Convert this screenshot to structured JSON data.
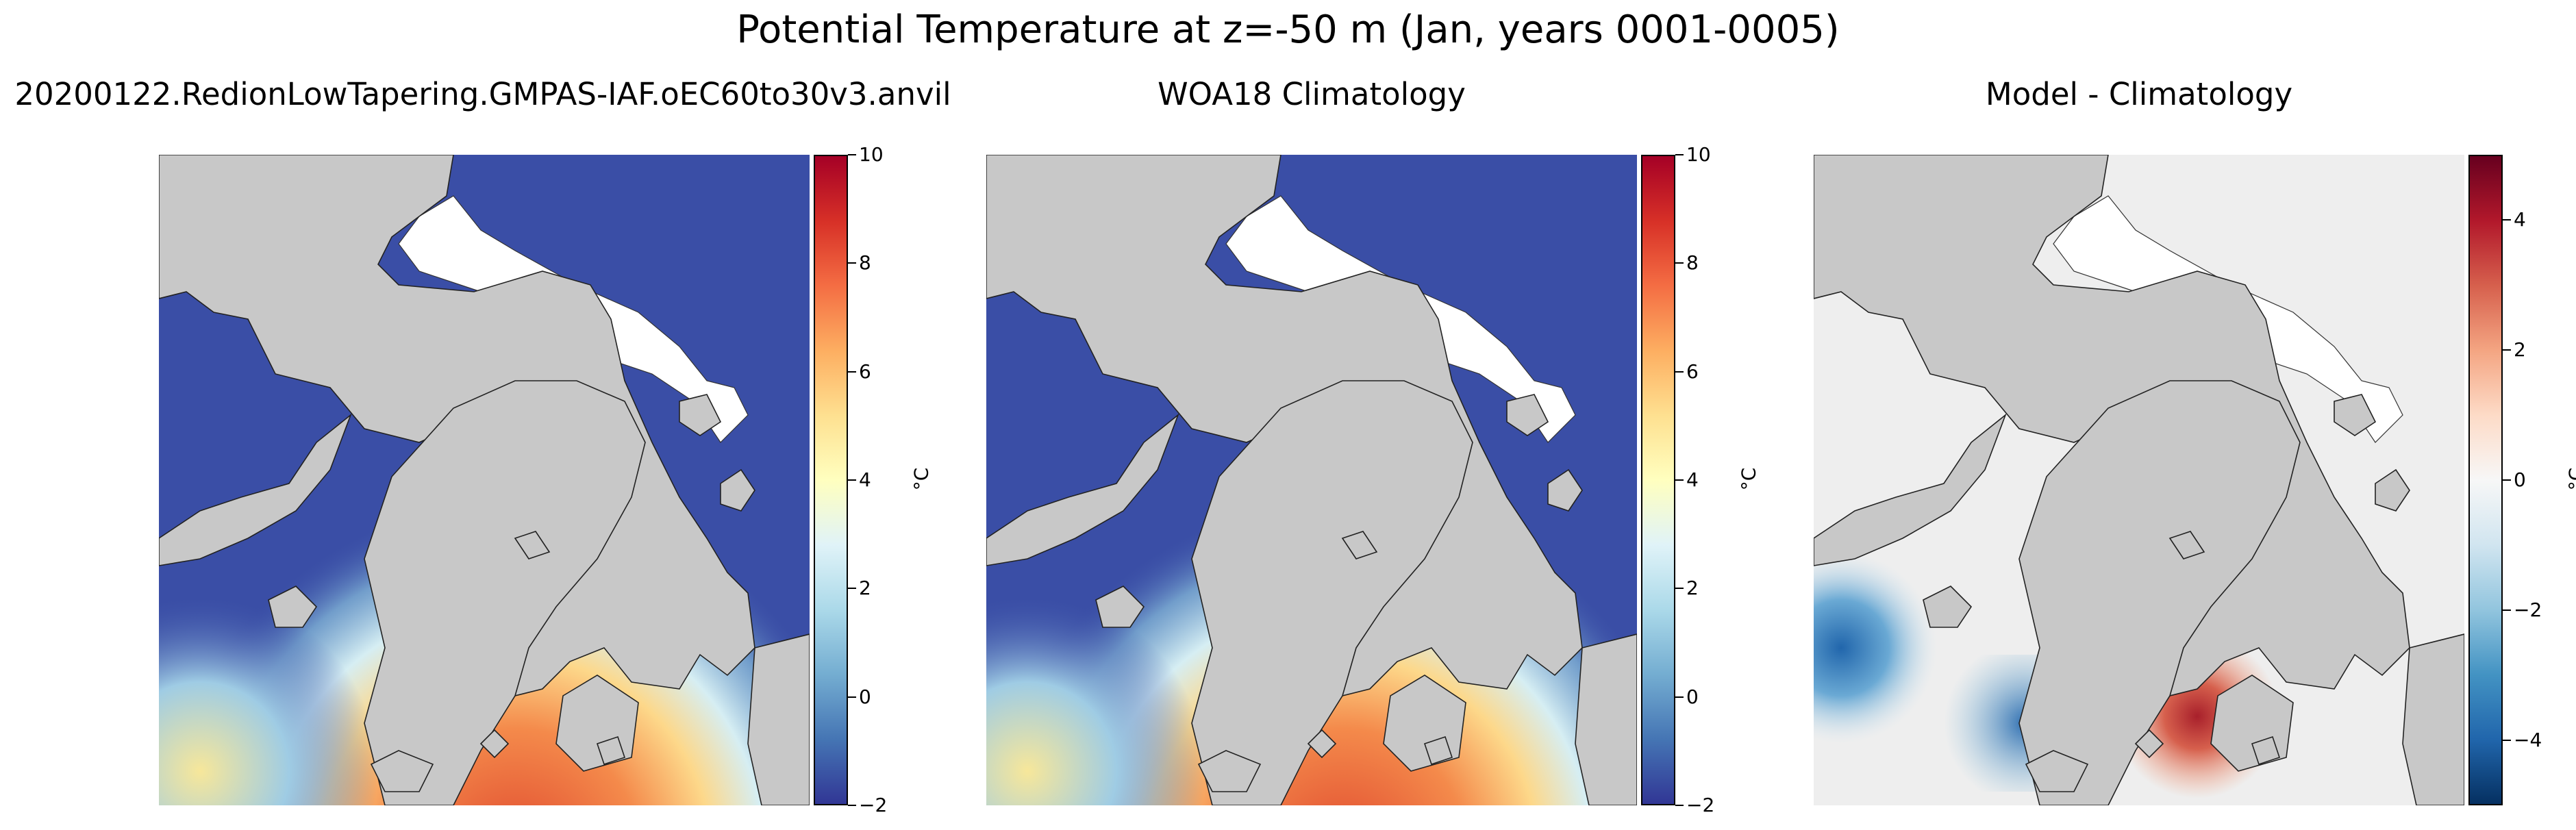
{
  "figure": {
    "suptitle": "Potential Temperature at z=-50 m (Jan, years 0001-0005)"
  },
  "chart_data": [
    {
      "type": "heatmap",
      "title": "20200122.RedionLowTapering.GMPAS-IAF.oEC60to30v3.anvil",
      "field": "potential temperature, model",
      "projection": "north polar stereographic",
      "colormap": "RdYlBu_r",
      "units": "°C",
      "vmin": -2,
      "vmax": 10,
      "colorbar_ticks": [
        "−2",
        "0",
        "2",
        "4",
        "6",
        "8",
        "10"
      ],
      "colorbar_tick_values": [
        -2,
        0,
        2,
        4,
        6,
        8,
        10
      ]
    },
    {
      "type": "heatmap",
      "title": "WOA18 Climatology",
      "field": "potential temperature, observations",
      "projection": "north polar stereographic",
      "colormap": "RdYlBu_r",
      "units": "°C",
      "vmin": -2,
      "vmax": 10,
      "colorbar_ticks": [
        "−2",
        "0",
        "2",
        "4",
        "6",
        "8",
        "10"
      ],
      "colorbar_tick_values": [
        -2,
        0,
        2,
        4,
        6,
        8,
        10
      ]
    },
    {
      "type": "heatmap",
      "title": "Model - Climatology",
      "field": "potential temperature difference",
      "projection": "north polar stereographic",
      "colormap": "RdBu_r",
      "units": "°C",
      "vmin": -5,
      "vmax": 5,
      "colorbar_ticks": [
        "−4",
        "−2",
        "0",
        "2",
        "4"
      ],
      "colorbar_tick_values": [
        -4,
        -2,
        0,
        2,
        4
      ]
    }
  ],
  "colors": {
    "land": "#c8c8c8",
    "sea_ice_mask": "#ffffff",
    "rdylbu": [
      "#313695",
      "#4575b4",
      "#74add1",
      "#abd9e9",
      "#e0f3f8",
      "#ffffbf",
      "#fee090",
      "#fdae61",
      "#f46d43",
      "#d73027",
      "#a50026"
    ],
    "rdbu": [
      "#053061",
      "#2166ac",
      "#4393c3",
      "#92c5de",
      "#d1e5f0",
      "#f7f7f7",
      "#fddbc7",
      "#f4a582",
      "#d6604d",
      "#b2182b",
      "#67001f"
    ]
  }
}
